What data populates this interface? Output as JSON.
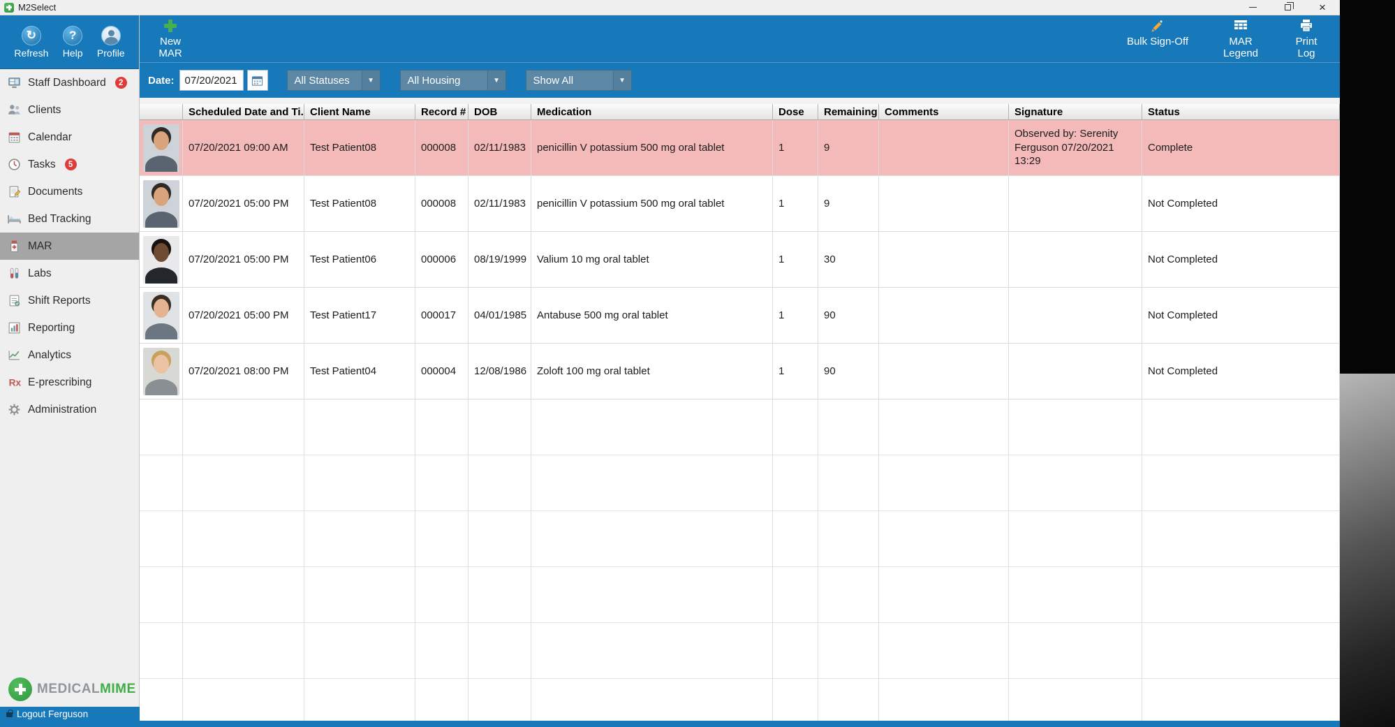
{
  "window": {
    "title": "M2Select",
    "controls": {
      "minimize": "minimize",
      "restore": "restore",
      "close": "close"
    }
  },
  "sidebar": {
    "top_buttons": [
      {
        "label": "Refresh",
        "icon": "refresh-icon",
        "glyph": "↻"
      },
      {
        "label": "Help",
        "icon": "help-icon",
        "glyph": "?"
      },
      {
        "label": "Profile",
        "icon": "profile-icon"
      }
    ],
    "items": [
      {
        "label": "Staff Dashboard",
        "badge": "2",
        "selected": false
      },
      {
        "label": "Clients",
        "selected": false
      },
      {
        "label": "Calendar",
        "selected": false
      },
      {
        "label": "Tasks",
        "badge": "5",
        "selected": false
      },
      {
        "label": "Documents",
        "selected": false
      },
      {
        "label": "Bed Tracking",
        "selected": false
      },
      {
        "label": "MAR",
        "selected": true
      },
      {
        "label": "Labs",
        "selected": false
      },
      {
        "label": "Shift Reports",
        "selected": false
      },
      {
        "label": "Reporting",
        "selected": false
      },
      {
        "label": "Analytics",
        "selected": false
      },
      {
        "label": "E-prescribing",
        "selected": false
      },
      {
        "label": "Administration",
        "selected": false
      }
    ],
    "logo": {
      "part1": "MEDICAL",
      "part2": "MIME"
    },
    "logout_label": "Logout Ferguson"
  },
  "toolbar": {
    "new_mar_label": "New MAR",
    "bulk_signoff_label": "Bulk Sign-Off",
    "mar_legend_label": "MAR Legend",
    "print_log_label": "Print Log"
  },
  "filters": {
    "date_label": "Date:",
    "date_value": "07/20/2021",
    "status_filter": "All Statuses",
    "housing_filter": "All Housing",
    "show_filter": "Show All"
  },
  "table": {
    "columns": [
      "Scheduled Date and Ti...",
      "Client Name",
      "Record #",
      "DOB",
      "Medication",
      "Dose",
      "Remaining",
      "Comments",
      "Signature",
      "Status"
    ],
    "rows": [
      {
        "scheduled": "07/20/2021 09:00 AM",
        "client": "Test Patient08",
        "record": "000008",
        "dob": "02/11/1983",
        "medication": "penicillin V potassium 500 mg oral tablet",
        "dose": "1",
        "remaining": "9",
        "comments": "",
        "signature": "Observed by: Serenity Ferguson 07/20/2021 13:29",
        "status": "Complete",
        "highlighted": true
      },
      {
        "scheduled": "07/20/2021 05:00 PM",
        "client": "Test Patient08",
        "record": "000008",
        "dob": "02/11/1983",
        "medication": "penicillin V potassium 500 mg oral tablet",
        "dose": "1",
        "remaining": "9",
        "comments": "",
        "signature": "",
        "status": "Not Completed",
        "highlighted": false
      },
      {
        "scheduled": "07/20/2021 05:00 PM",
        "client": "Test Patient06",
        "record": "000006",
        "dob": "08/19/1999",
        "medication": "Valium 10 mg oral tablet",
        "dose": "1",
        "remaining": "30",
        "comments": "",
        "signature": "",
        "status": "Not Completed",
        "highlighted": false
      },
      {
        "scheduled": "07/20/2021 05:00 PM",
        "client": "Test Patient17",
        "record": "000017",
        "dob": "04/01/1985",
        "medication": "Antabuse 500 mg oral tablet",
        "dose": "1",
        "remaining": "90",
        "comments": "",
        "signature": "",
        "status": "Not Completed",
        "highlighted": false
      },
      {
        "scheduled": "07/20/2021 08:00 PM",
        "client": "Test Patient04",
        "record": "000004",
        "dob": "12/08/1986",
        "medication": "Zoloft 100 mg oral tablet",
        "dose": "1",
        "remaining": "90",
        "comments": "",
        "signature": "",
        "status": "Not Completed",
        "highlighted": false
      }
    ]
  },
  "colors": {
    "toolbar_blue": "#1779ba",
    "highlight_pink": "#f4b9b9",
    "badge_red": "#e03b3b",
    "logo_green": "#3fae49",
    "sidebar_gray": "#efefef",
    "selected_item_gray": "#a5a5a5"
  }
}
